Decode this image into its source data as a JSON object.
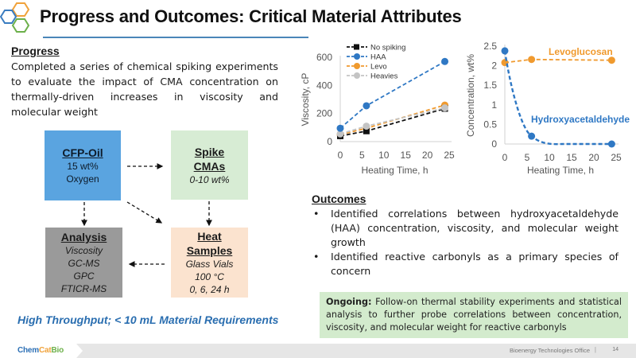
{
  "header": {
    "title": "Progress and Outcomes: Critical Material Attributes",
    "logo_colors": [
      "#f0a23a",
      "#3a7cc0",
      "#6cb04a"
    ]
  },
  "progress": {
    "heading": "Progress",
    "body": "Completed a series of chemical spiking experiments to evaluate the impact of CMA concentration on thermally-driven increases in viscosity and molecular weight"
  },
  "diagram": {
    "boxes": [
      {
        "id": "cfp",
        "title": "CFP-Oil",
        "lines": [
          "15 wt%",
          "Oxygen"
        ],
        "italic": false,
        "color": "#5aa4e0"
      },
      {
        "id": "spike",
        "title_lines": [
          "Spike",
          "CMAs"
        ],
        "lines": [
          "0-10 wt%"
        ],
        "italic": true,
        "color": "#d7ecd4"
      },
      {
        "id": "analysis",
        "title": "Analysis",
        "lines": [
          "Viscosity",
          "GC-MS",
          "GPC",
          "FTICR-MS"
        ],
        "italic": true,
        "color": "#9a9a9a"
      },
      {
        "id": "heat",
        "title_lines": [
          "Heat",
          "Samples"
        ],
        "lines": [
          "Glass Vials",
          "100 °C",
          "0, 6, 24 h"
        ],
        "italic": true,
        "color": "#fbe3cf"
      }
    ],
    "flows": [
      {
        "from": "CFP-Oil",
        "to": "Spike CMAs"
      },
      {
        "from": "CFP-Oil",
        "to": "Analysis"
      },
      {
        "from": "CFP-Oil",
        "to": "Heat Samples"
      },
      {
        "from": "Spike CMAs",
        "to": "Heat Samples"
      },
      {
        "from": "Heat Samples",
        "to": "Analysis"
      }
    ],
    "tagline": "High Throughput; < 10 mL Material Requirements"
  },
  "chart_data": [
    {
      "type": "line",
      "title": "",
      "xlabel": "Heating Time, h",
      "ylabel": "Viscosity, cP",
      "xlim": [
        0,
        25
      ],
      "ylim": [
        0,
        600
      ],
      "xticks": [
        0,
        5,
        10,
        15,
        20,
        25
      ],
      "yticks": [
        0,
        200,
        400,
        600
      ],
      "grid": false,
      "legend": "top-left",
      "x": [
        0,
        6,
        24
      ],
      "series": [
        {
          "name": "No spiking",
          "values": [
            40,
            75,
            235
          ],
          "color": "#111111",
          "marker": "square",
          "dash": true
        },
        {
          "name": "HAA",
          "values": [
            95,
            255,
            570
          ],
          "color": "#2f78c4",
          "marker": "circle",
          "dash": true
        },
        {
          "name": "Levo",
          "values": [
            50,
            95,
            260
          ],
          "color": "#f09a2e",
          "marker": "circle",
          "dash": true
        },
        {
          "name": "Heavies",
          "values": [
            55,
            110,
            240
          ],
          "color": "#c4c4c4",
          "marker": "circle",
          "dash": true
        }
      ]
    },
    {
      "type": "line",
      "title": "",
      "xlabel": "Heating Time, h",
      "ylabel": "Concentration, wt%",
      "xlim": [
        0,
        25
      ],
      "ylim": [
        0,
        2.5
      ],
      "xticks": [
        0,
        5,
        10,
        15,
        20,
        25
      ],
      "yticks": [
        0,
        0.5,
        1,
        1.5,
        2,
        2.5
      ],
      "grid": false,
      "legend": "inline",
      "x": [
        0,
        6,
        24
      ],
      "series": [
        {
          "name": "Levoglucosan",
          "values": [
            2.08,
            2.16,
            2.14
          ],
          "color": "#f09a2e",
          "marker": "circle",
          "dash": true
        },
        {
          "name": "Hydroxyacetaldehyde",
          "values": [
            2.38,
            0.2,
            0.0
          ],
          "color": "#2f78c4",
          "marker": "circle",
          "dash": true,
          "curve": "smooth"
        }
      ]
    }
  ],
  "outcomes": {
    "heading": "Outcomes",
    "items": [
      "Identified correlations between hydroxyacetaldehyde (HAA) concentration, viscosity, and molecular weight growth",
      "Identified reactive carbonyls as a primary species of concern"
    ],
    "bullet": "•"
  },
  "ongoing": {
    "label": "Ongoing:",
    "text": " Follow-on thermal stability experiments and statistical analysis to further probe correlations between concentration, viscosity, and molecular weight for reactive carbonyls"
  },
  "footer": {
    "brand_parts": [
      "Chem",
      "Cat",
      "Bio"
    ],
    "office": "Bioenergy Technologies Office",
    "separator": "|",
    "page": "14"
  }
}
